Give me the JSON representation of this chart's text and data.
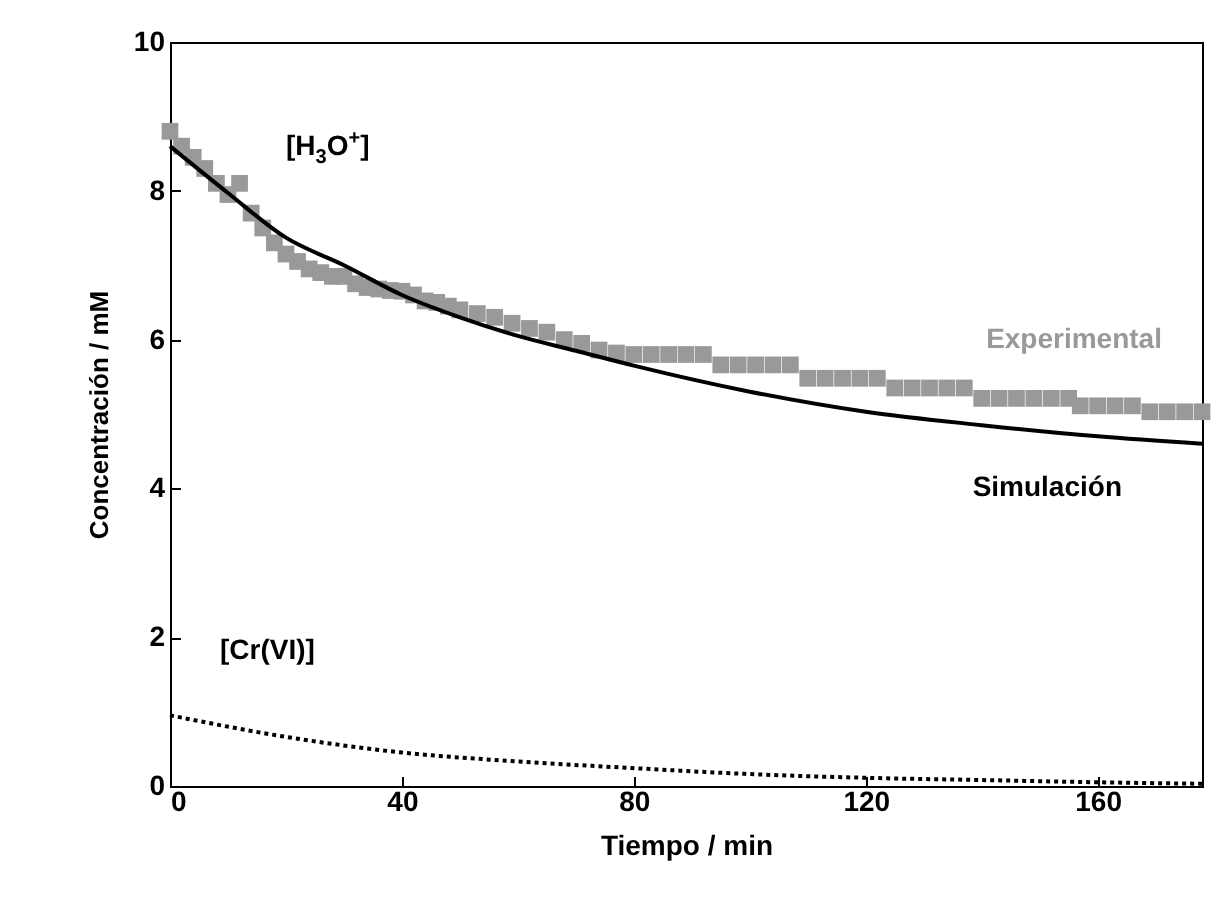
{
  "chart_data": {
    "type": "line",
    "xlabel": "Tiempo / min",
    "ylabel": "Concentración / mM",
    "xlim": [
      0,
      178
    ],
    "xticks": [
      0,
      40,
      80,
      120,
      160
    ],
    "ylim": [
      0,
      10
    ],
    "yticks": [
      0,
      2,
      4,
      6,
      8,
      10
    ],
    "grid": false,
    "annotations": [
      "[H$_{3}$O$^{+}$]"
    ],
    "series": [
      {
        "name": "Experimental",
        "type": "scatter",
        "marker": "square",
        "color": "#999999",
        "x": [
          0,
          2,
          4,
          6,
          8,
          10,
          12,
          14,
          16,
          18,
          20,
          22,
          24,
          26,
          28,
          30,
          32,
          34,
          36,
          38,
          40,
          42,
          44,
          46,
          48,
          50,
          53,
          56,
          59,
          62,
          65,
          68,
          71,
          74,
          77,
          80,
          83,
          86,
          89,
          92,
          95,
          98,
          101,
          104,
          107,
          110,
          113,
          116,
          119,
          122,
          125,
          128,
          131,
          134,
          137,
          140,
          143,
          146,
          149,
          152,
          155,
          157,
          160,
          163,
          166,
          169,
          172,
          175,
          178
        ],
        "values": [
          8.8,
          8.6,
          8.45,
          8.3,
          8.1,
          7.95,
          8.1,
          7.7,
          7.5,
          7.3,
          7.15,
          7.05,
          6.95,
          6.9,
          6.85,
          6.85,
          6.75,
          6.7,
          6.68,
          6.66,
          6.65,
          6.6,
          6.52,
          6.5,
          6.45,
          6.4,
          6.35,
          6.3,
          6.22,
          6.15,
          6.1,
          6.0,
          5.95,
          5.86,
          5.82,
          5.8,
          5.8,
          5.8,
          5.8,
          5.8,
          5.66,
          5.66,
          5.66,
          5.66,
          5.66,
          5.48,
          5.48,
          5.48,
          5.48,
          5.48,
          5.35,
          5.35,
          5.35,
          5.35,
          5.35,
          5.21,
          5.21,
          5.21,
          5.21,
          5.21,
          5.21,
          5.11,
          5.11,
          5.11,
          5.11,
          5.03,
          5.03,
          5.03,
          5.03
        ]
      },
      {
        "name": "Simulación",
        "line_style": "solid",
        "color": "#000000",
        "x": [
          0,
          10,
          20,
          30,
          40,
          50,
          60,
          70,
          80,
          100,
          120,
          140,
          160,
          178
        ],
        "values": [
          8.6,
          7.97,
          7.37,
          7.0,
          6.6,
          6.3,
          6.05,
          5.85,
          5.65,
          5.3,
          5.03,
          4.85,
          4.7,
          4.6
        ]
      },
      {
        "name": "[Cr(VI)]",
        "line_style": "dotted",
        "color": "#000000",
        "x": [
          0,
          20,
          40,
          60,
          80,
          100,
          120,
          140,
          160,
          178
        ],
        "values": [
          0.95,
          0.66,
          0.45,
          0.33,
          0.24,
          0.16,
          0.11,
          0.08,
          0.05,
          0.03
        ]
      }
    ]
  }
}
